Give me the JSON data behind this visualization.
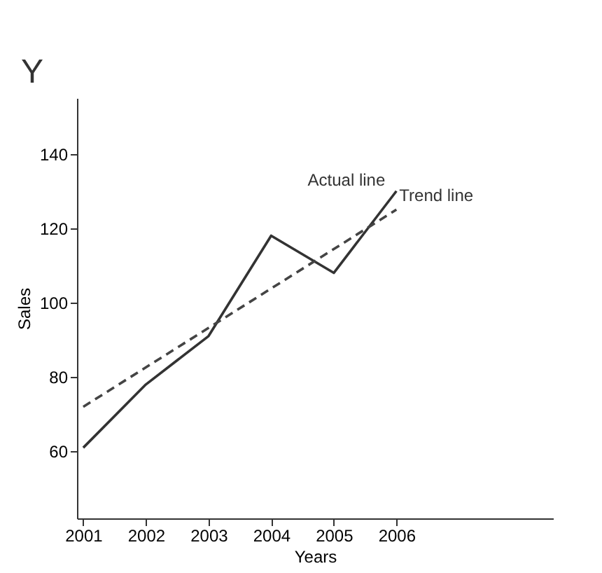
{
  "chart_data": {
    "type": "line",
    "xlabel": "Years",
    "ylabel": "Sales",
    "annotations": [
      "Y"
    ],
    "xlim": [
      2000.9,
      2008.5
    ],
    "xticks": [
      2001,
      2002,
      2003,
      2004,
      2005,
      2006
    ],
    "ylim": [
      42,
      155
    ],
    "yticks": [
      60,
      80,
      100,
      120,
      140
    ],
    "grid": false,
    "legend": false,
    "marker": "none",
    "series": [
      {
        "name": "Actual line",
        "color": "#333333",
        "line_style": "solid",
        "x": [
          2001,
          2002,
          2003,
          2004,
          2005,
          2006
        ],
        "values": [
          61,
          78,
          91,
          118,
          108,
          130
        ]
      },
      {
        "name": "Trend line",
        "type": "line",
        "color": "#444444",
        "line_style": "dashed",
        "x": [
          2001,
          2006
        ],
        "values": [
          72,
          125
        ]
      }
    ]
  }
}
